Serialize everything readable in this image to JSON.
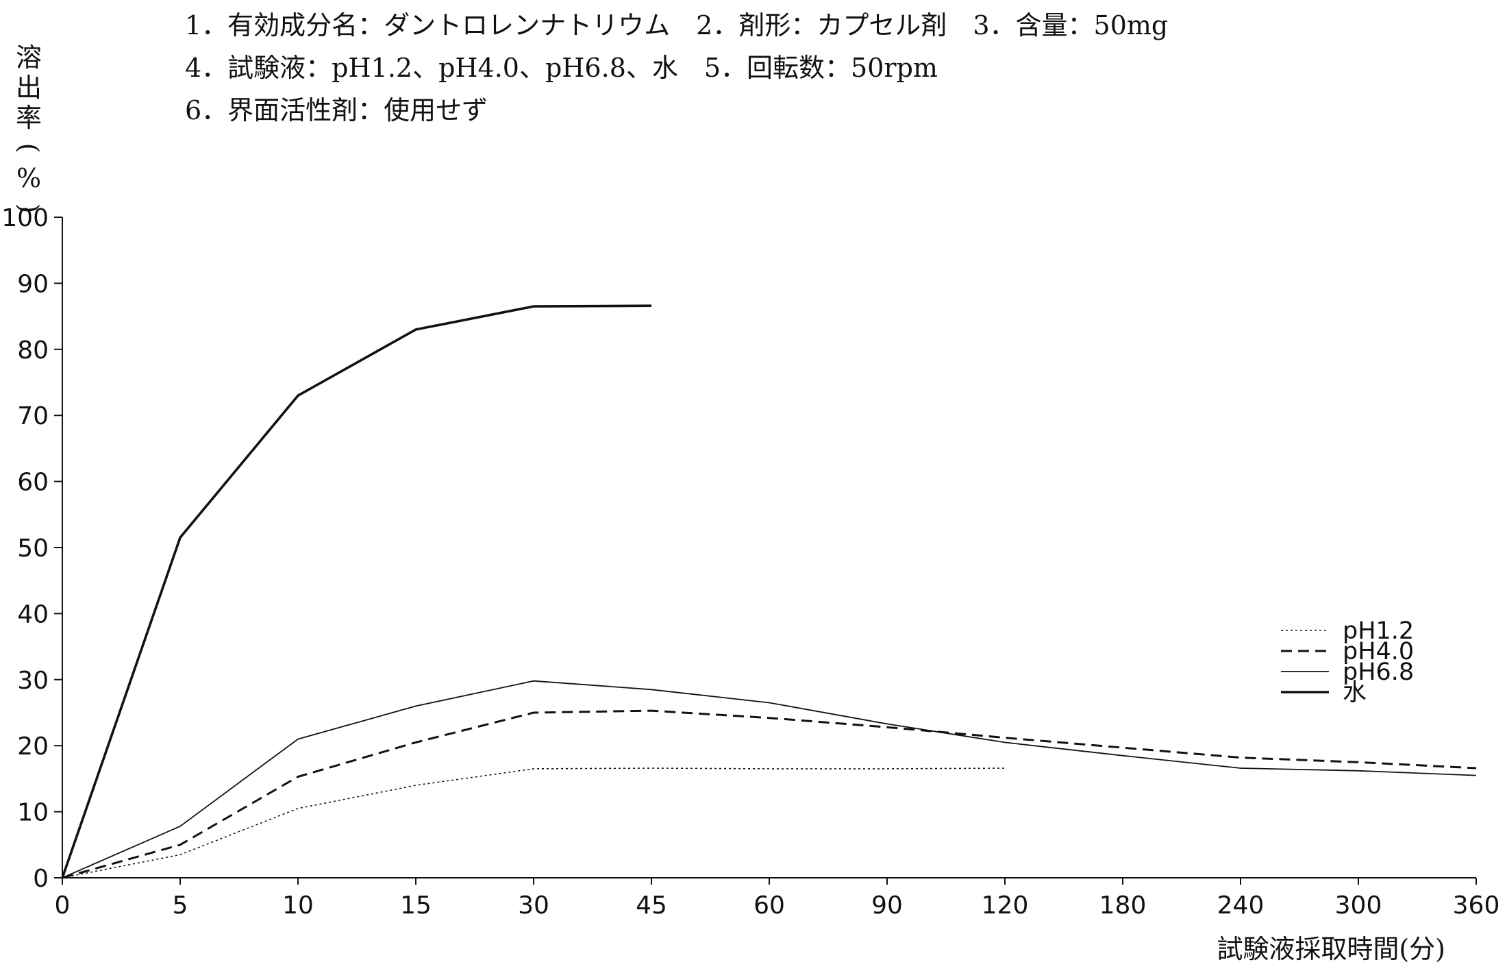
{
  "header": {
    "line1": "1．有効成分名：ダントロレンナトリウム　2．剤形：カプセル剤　3．含量：50mg",
    "line2": "4．試験液：pH1.2、pH4.0、pH6.8、水　5．回転数：50rpm",
    "line3": "6．界面活性剤：使用せず"
  },
  "chart_data": {
    "type": "line",
    "xlabel": "試験液採取時間(分)",
    "ylabel": "溶出率(%)",
    "categories": [
      "0",
      "5",
      "10",
      "15",
      "30",
      "45",
      "60",
      "90",
      "120",
      "180",
      "240",
      "300",
      "360"
    ],
    "ylim": [
      0,
      100
    ],
    "yticks": [
      0,
      10,
      20,
      30,
      40,
      50,
      60,
      70,
      80,
      90,
      100
    ],
    "grid": false,
    "legend_position": "right",
    "series": [
      {
        "name": "pH1.2",
        "style": "dotted",
        "values": [
          0,
          3.5,
          10.5,
          14,
          16.5,
          16.6,
          16.5,
          16.5,
          16.6,
          null,
          null,
          null,
          null
        ]
      },
      {
        "name": "pH4.0",
        "style": "dashed",
        "values": [
          0,
          5,
          15.3,
          20.5,
          25,
          25.3,
          24.2,
          22.8,
          21.2,
          19.7,
          18.2,
          17.5,
          16.6
        ]
      },
      {
        "name": "pH6.8",
        "style": "thin-solid",
        "values": [
          0,
          7.8,
          21,
          26,
          29.8,
          28.5,
          26.5,
          23.3,
          20.5,
          18.5,
          16.6,
          16.2,
          15.5
        ]
      },
      {
        "name": "水",
        "style": "thick-solid",
        "values": [
          0,
          51.5,
          73,
          83,
          86.5,
          86.6,
          null,
          null,
          null,
          null,
          null,
          null,
          null
        ]
      }
    ]
  }
}
